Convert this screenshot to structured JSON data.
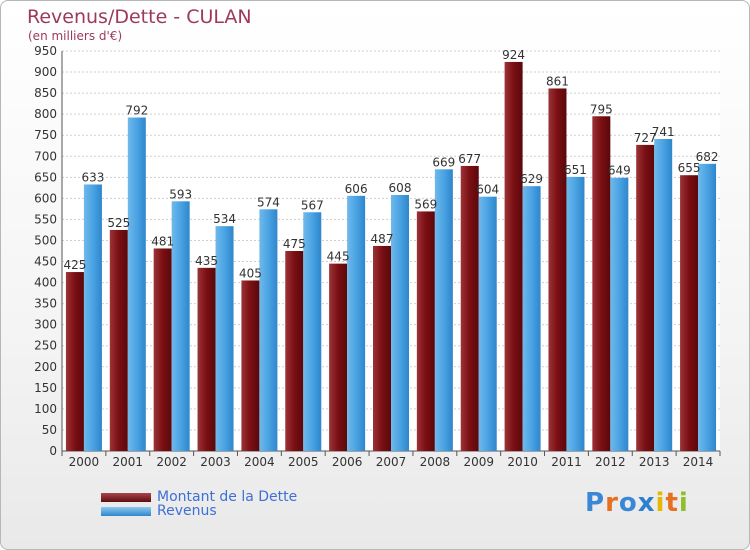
{
  "title": "Revenus/Dette - CULAN",
  "subtitle": "(en milliers d'€)",
  "logo": {
    "letters": [
      "P",
      "r",
      "o",
      "x",
      "i",
      "t",
      "i"
    ],
    "colors": [
      "#3a87d8",
      "#e5701f",
      "#3a87d8",
      "#2e7fd0",
      "#e6b800",
      "#e5701f",
      "#8dbf2b"
    ]
  },
  "chart_data": {
    "type": "bar",
    "categories": [
      "2000",
      "2001",
      "2002",
      "2003",
      "2004",
      "2005",
      "2006",
      "2007",
      "2008",
      "2009",
      "2010",
      "2011",
      "2012",
      "2013",
      "2014"
    ],
    "series": [
      {
        "name": "Montant de la Dette",
        "color": "#7a0f13",
        "values": [
          425,
          525,
          481,
          435,
          405,
          475,
          445,
          487,
          569,
          677,
          924,
          861,
          795,
          727,
          655
        ],
        "labels": [
          "425",
          "525",
          "481",
          "435",
          "405",
          "475",
          "445",
          "487",
          "569",
          "677",
          "924",
          "861",
          "795",
          "727",
          "655"
        ]
      },
      {
        "name": "Revenus",
        "color": "#4aa3e3",
        "values": [
          633,
          792,
          593,
          534,
          574,
          567,
          606,
          608,
          669,
          604,
          629,
          651,
          649,
          741,
          682
        ],
        "labels": [
          "633",
          "792",
          "593",
          "534",
          "574",
          "567",
          "606",
          "608",
          "669",
          "604",
          "629",
          "651",
          "649",
          "741",
          "682"
        ]
      }
    ],
    "ylim": [
      0,
      950
    ],
    "yticks": [
      "0",
      "50",
      "100",
      "150",
      "200",
      "250",
      "300",
      "350",
      "400",
      "450",
      "500",
      "550",
      "600",
      "650",
      "700",
      "750",
      "800",
      "850",
      "900",
      "950"
    ],
    "grid": true,
    "legend": "bottom-left"
  }
}
